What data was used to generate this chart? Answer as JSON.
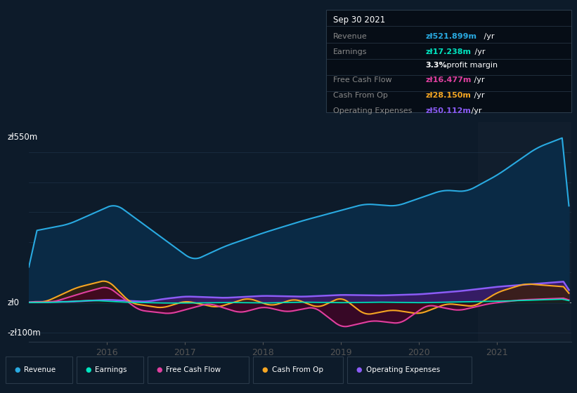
{
  "bg_color": "#0d1b2a",
  "plot_bg_color": "#0d1b2a",
  "ylabel_top": "zł550m",
  "ylabel_zero": "zł0",
  "ylabel_bot": "-zł100m",
  "ylim": [
    -130,
    600
  ],
  "xlim_start": 2015.0,
  "xlim_end": 2021.95,
  "grid_color": "#253a52",
  "revenue_color": "#29aae1",
  "earnings_color": "#00e5c0",
  "fcf_color": "#e040a0",
  "cashfromop_color": "#f5a623",
  "opex_color": "#8b5cf6",
  "revenue_fill": "#0a2a45",
  "earnings_fill": "#003322",
  "fcf_fill": "#4a0025",
  "cashop_fill": "#3d2000",
  "opex_fill": "#3d1a6a",
  "tooltip_bg": "#060d16",
  "tooltip_border": "#2a3a4a",
  "tooltip_title": "Sep 30 2021",
  "tooltip_revenue_label": "Revenue",
  "tooltip_revenue_value": "zł521.899m",
  "tooltip_earnings_label": "Earnings",
  "tooltip_earnings_value": "zł17.238m",
  "tooltip_margin": "3.3%",
  "tooltip_margin_text": " profit margin",
  "tooltip_fcf_label": "Free Cash Flow",
  "tooltip_fcf_value": "zł16.477m",
  "tooltip_cashop_label": "Cash From Op",
  "tooltip_cashop_value": "zł28.150m",
  "tooltip_opex_label": "Operating Expenses",
  "tooltip_opex_value": "zł50.112m",
  "shaded_x_start": 2020.75,
  "shaded_x_end": 2021.95,
  "shaded_color": "#111e2d"
}
